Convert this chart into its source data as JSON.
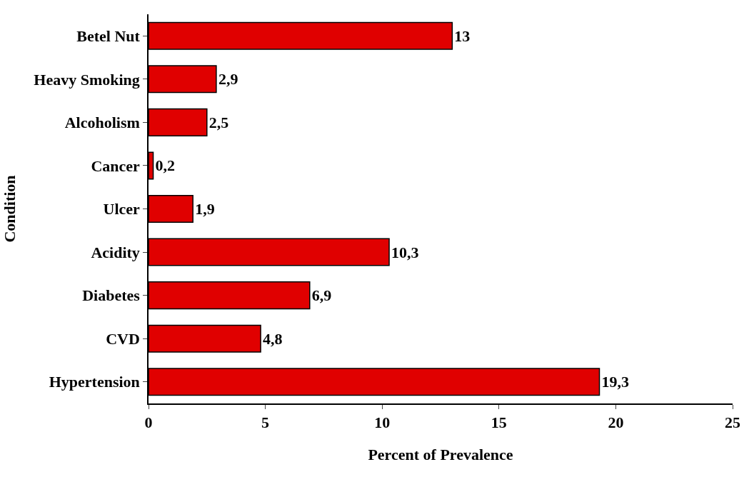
{
  "chart_data": {
    "type": "bar",
    "orientation": "horizontal",
    "xlabel": "Percent of Prevalence",
    "ylabel": "Condition",
    "categories": [
      "Betel Nut",
      "Heavy Smoking",
      "Alcoholism",
      "Cancer",
      "Ulcer",
      "Acidity",
      "Diabetes",
      "CVD",
      "Hypertension"
    ],
    "values": [
      13,
      2.9,
      2.5,
      0.2,
      1.9,
      10.3,
      6.9,
      4.8,
      19.3
    ],
    "value_labels": [
      "13",
      "2,9",
      "2,5",
      "0,2",
      "1,9",
      "10,3",
      "6,9",
      "4,8",
      "19,3"
    ],
    "color": "#e00000",
    "xlim": [
      0,
      25
    ],
    "xticks": [
      0,
      5,
      10,
      15,
      20,
      25
    ]
  }
}
